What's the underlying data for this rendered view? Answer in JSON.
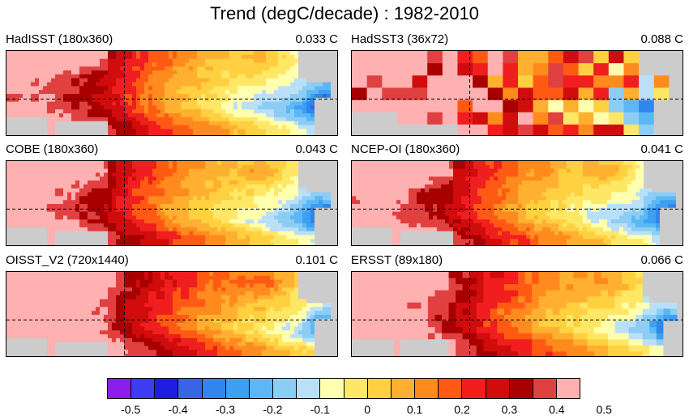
{
  "title": "Trend (degC/decade) : 1982-2010",
  "panels": [
    {
      "label": "HadISST (180x360)",
      "value": "0.033 C",
      "style": "smooth",
      "bias": 0.0
    },
    {
      "label": "HadSST3 (36x72)",
      "value": "0.088 C",
      "style": "coarse",
      "bias": 0.12
    },
    {
      "label": "COBE (180x360)",
      "value": "0.043 C",
      "style": "smooth",
      "bias": 0.02
    },
    {
      "label": "NCEP-OI (180x360)",
      "value": "0.041 C",
      "style": "smooth",
      "bias": 0.01
    },
    {
      "label": "OISST_V2 (720x1440)",
      "value": "0.101 C",
      "style": "smooth",
      "bias": 0.1
    },
    {
      "label": "ERSST (89x180)",
      "value": "0.066 C",
      "style": "medium",
      "bias": 0.05
    }
  ],
  "colorbar": {
    "colors": [
      "#8a1ee8",
      "#3c3cf0",
      "#1e1ee0",
      "#3a64e6",
      "#2f86ec",
      "#3da0f2",
      "#5cb8f5",
      "#8ccdf6",
      "#b9e0f8",
      "#ffffb0",
      "#ffe766",
      "#ffd040",
      "#ffb030",
      "#ff8a1e",
      "#ff5a14",
      "#f01e1e",
      "#d00c0c",
      "#a80000",
      "#e04040",
      "#ffb0b0"
    ],
    "ticks": [
      "-0.5",
      "-0.4",
      "-0.3",
      "-0.2",
      "-0.1",
      "0",
      "0.1",
      "0.2",
      "0.3",
      "0.4",
      "0.5"
    ]
  },
  "map_colors": {
    "land": "#cccccc"
  }
}
